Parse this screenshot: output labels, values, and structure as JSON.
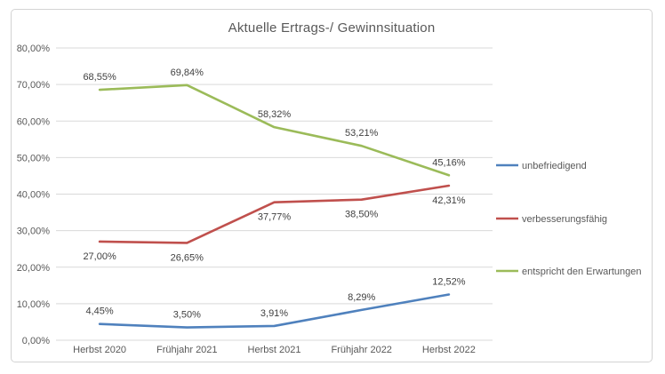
{
  "chart_data": {
    "type": "line",
    "title": "Aktuelle Ertrags-/ Gewinnsituation",
    "categories": [
      "Herbst 2020",
      "Frühjahr 2021",
      "Herbst 2021",
      "Frühjahr 2022",
      "Herbst 2022"
    ],
    "series": [
      {
        "name": "unbefriedigend",
        "color": "#4F81BD",
        "values": [
          4.45,
          3.5,
          3.91,
          8.29,
          12.52
        ],
        "labels": [
          "4,45%",
          "3,50%",
          "3,91%",
          "8,29%",
          "12,52%"
        ],
        "label_position": "above"
      },
      {
        "name": "verbesserungsfähig",
        "color": "#C0504D",
        "values": [
          27.0,
          26.65,
          37.77,
          38.5,
          42.31
        ],
        "labels": [
          "27,00%",
          "26,65%",
          "37,77%",
          "38,50%",
          "42,31%"
        ],
        "label_position": "below"
      },
      {
        "name": "entspricht den Erwartungen",
        "color": "#9BBB59",
        "values": [
          68.55,
          69.84,
          58.32,
          53.21,
          45.16
        ],
        "labels": [
          "68,55%",
          "69,84%",
          "58,32%",
          "53,21%",
          "45,16%"
        ],
        "label_position": "above"
      }
    ],
    "y_ticks": [
      "0,00%",
      "10,00%",
      "20,00%",
      "30,00%",
      "40,00%",
      "50,00%",
      "60,00%",
      "70,00%",
      "80,00%"
    ],
    "ylim": [
      0,
      80
    ],
    "grid": true,
    "legend_position": "right",
    "colors": {
      "gridline": "#d9d9d9",
      "tick_text": "#595959",
      "data_label_text": "#404040",
      "legend_text": "#595959",
      "title_text": "#595959",
      "frame_border": "#d3d3d3"
    }
  }
}
